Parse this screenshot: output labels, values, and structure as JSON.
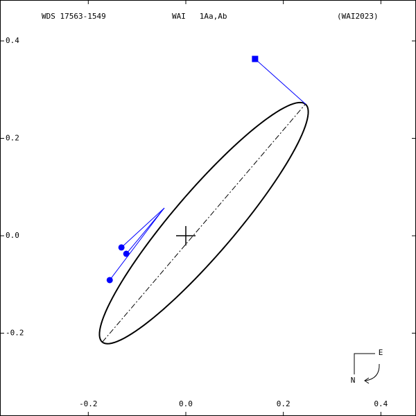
{
  "chart_data": {
    "type": "orbit",
    "header": [
      "WDS 17563-1549",
      "WAI   1Aa,Ab",
      "(WAI2023)"
    ],
    "xlim": [
      -0.381,
      0.472
    ],
    "ylim": [
      -0.37,
      0.484
    ],
    "xticks": [
      -0.2,
      {
        "value": 0,
        "label": "0.0"
      },
      0.2,
      0.4
    ],
    "yticks": [
      0.4,
      0.2,
      {
        "value": 0,
        "label": "0.0"
      },
      -0.2
    ],
    "orbit": {
      "center_x": 0.037,
      "center_y": 0.026,
      "semi_major": 0.321,
      "semi_minor": 0.064,
      "angle_deg": 49.5,
      "color": "#000000"
    },
    "apsides": {
      "x": [
        -0.171,
        0.245
      ],
      "y": [
        -0.218,
        0.27
      ]
    },
    "observations": [
      {
        "marker": "circle",
        "x": -0.132,
        "y": -0.024,
        "predicted_x": -0.044,
        "predicted_y": 0.057
      },
      {
        "marker": "circle",
        "x": -0.122,
        "y": -0.037,
        "predicted_x": -0.044,
        "predicted_y": 0.057
      },
      {
        "marker": "circle",
        "x": -0.156,
        "y": -0.091,
        "predicted_x": -0.046,
        "predicted_y": 0.055
      },
      {
        "marker": "square",
        "x": 0.142,
        "y": 0.363,
        "predicted_x": 0.246,
        "predicted_y": 0.27
      }
    ],
    "observation_color": "#0000ff",
    "compass": [
      "E",
      "N"
    ]
  }
}
